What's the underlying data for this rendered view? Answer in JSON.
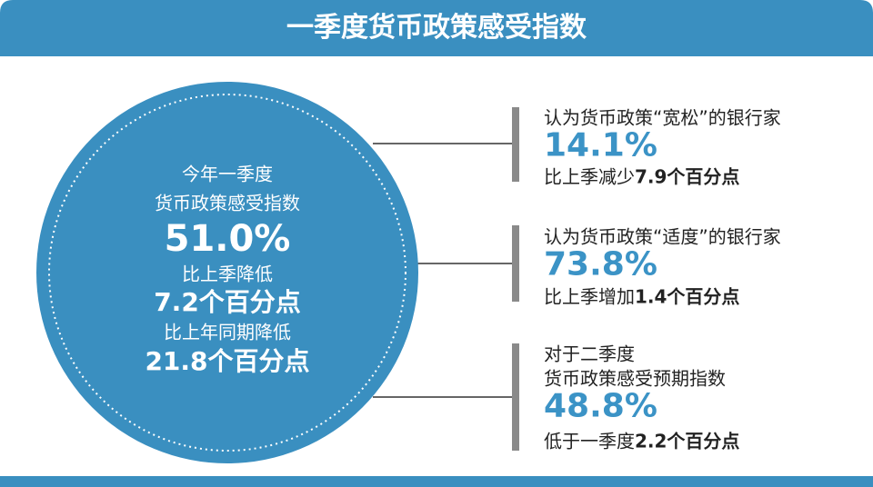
{
  "header": {
    "title": "一季度货币政策感受指数"
  },
  "summary": {
    "lines": [
      "今年一季度",
      "货币政策感受指数"
    ],
    "value": "51.0%",
    "changes": [
      {
        "text": "比上季降低",
        "amount": "7.2个百分点"
      },
      {
        "text": "比上年同期降低",
        "amount": "21.8个百分点"
      }
    ]
  },
  "items": [
    {
      "label_lines": [
        "认为货币政策“宽松”的银行家"
      ],
      "value": "14.1%",
      "change": "比上季减少",
      "amount": "7.9个百分点"
    },
    {
      "label_lines": [
        "认为货币政策“适度”的银行家"
      ],
      "value": "73.8%",
      "change": "比上季增加",
      "amount": "1.4个百分点"
    },
    {
      "label_lines": [
        "对于二季度",
        "货币政策感受预期指数"
      ],
      "value": "48.8%",
      "change": "低于一季度",
      "amount": "2.2个百分点"
    }
  ]
}
